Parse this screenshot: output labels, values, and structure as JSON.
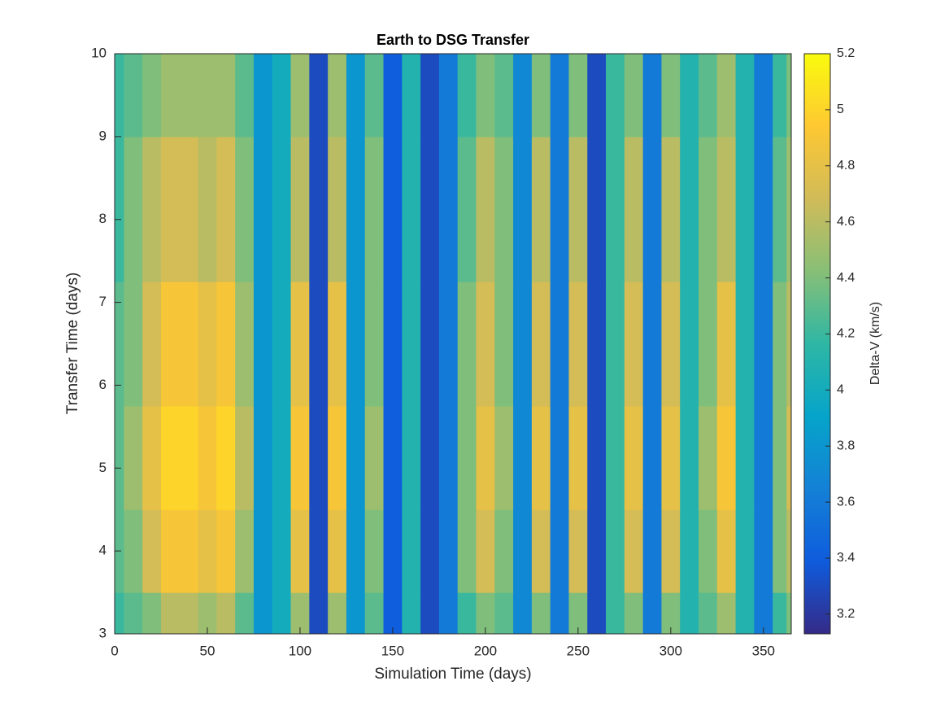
{
  "chart_data": {
    "type": "contourf",
    "title": "Earth to DSG Transfer",
    "x_label": "Simulation Time (days)",
    "y_label": "Transfer Time (days)",
    "colorbar_label": "Delta-V (km/s)",
    "x": [
      0,
      10,
      20,
      30,
      40,
      50,
      60,
      70,
      80,
      90,
      100,
      110,
      120,
      130,
      140,
      150,
      160,
      170,
      180,
      190,
      200,
      210,
      220,
      230,
      240,
      250,
      260,
      270,
      280,
      290,
      300,
      310,
      320,
      330,
      340,
      350,
      360,
      365
    ],
    "y": [
      3,
      4,
      5,
      6.5,
      8,
      10
    ],
    "z": [
      [
        4.2,
        4.3,
        4.4,
        4.6,
        4.6,
        4.5,
        4.6,
        4.3,
        3.8,
        4.0,
        4.5,
        3.3,
        4.5,
        3.8,
        4.3,
        3.4,
        4.1,
        3.3,
        3.6,
        4.2,
        4.4,
        4.3,
        3.7,
        4.4,
        3.6,
        4.4,
        3.3,
        4.2,
        4.4,
        3.6,
        4.4,
        4.1,
        4.3,
        4.5,
        4.1,
        3.6,
        4.2,
        4.4
      ],
      [
        4.3,
        4.4,
        4.7,
        4.9,
        4.9,
        4.8,
        4.9,
        4.5,
        3.8,
        4.0,
        4.8,
        3.3,
        4.8,
        3.8,
        4.4,
        3.4,
        4.1,
        3.3,
        3.6,
        4.4,
        4.7,
        4.4,
        3.7,
        4.7,
        3.6,
        4.7,
        3.3,
        4.2,
        4.7,
        3.6,
        4.7,
        4.1,
        4.4,
        4.8,
        4.1,
        3.6,
        4.4,
        4.6
      ],
      [
        4.3,
        4.5,
        4.8,
        5.0,
        5.0,
        4.9,
        5.0,
        4.6,
        3.8,
        4.0,
        4.9,
        3.3,
        4.9,
        3.8,
        4.5,
        3.4,
        4.1,
        3.3,
        3.6,
        4.4,
        4.8,
        4.5,
        3.7,
        4.8,
        3.6,
        4.8,
        3.3,
        4.2,
        4.8,
        3.6,
        4.8,
        4.1,
        4.5,
        4.9,
        4.1,
        3.6,
        4.4,
        4.7
      ],
      [
        4.3,
        4.4,
        4.7,
        4.9,
        4.9,
        4.8,
        4.9,
        4.5,
        3.8,
        4.0,
        4.8,
        3.3,
        4.8,
        3.8,
        4.4,
        3.4,
        4.1,
        3.3,
        3.6,
        4.4,
        4.7,
        4.4,
        3.7,
        4.7,
        3.6,
        4.7,
        3.3,
        4.2,
        4.7,
        3.6,
        4.7,
        4.1,
        4.4,
        4.8,
        4.1,
        3.6,
        4.4,
        4.6
      ],
      [
        4.2,
        4.4,
        4.6,
        4.7,
        4.7,
        4.6,
        4.7,
        4.4,
        3.8,
        4.0,
        4.6,
        3.3,
        4.6,
        3.8,
        4.4,
        3.4,
        4.1,
        3.3,
        3.6,
        4.3,
        4.6,
        4.4,
        3.7,
        4.6,
        3.6,
        4.6,
        3.3,
        4.2,
        4.6,
        3.6,
        4.6,
        4.1,
        4.4,
        4.6,
        4.1,
        3.6,
        4.3,
        4.5
      ],
      [
        4.2,
        4.3,
        4.4,
        4.5,
        4.5,
        4.5,
        4.5,
        4.3,
        3.8,
        4.0,
        4.5,
        3.3,
        4.5,
        3.8,
        4.3,
        3.4,
        4.1,
        3.3,
        3.6,
        4.2,
        4.4,
        4.3,
        3.7,
        4.4,
        3.6,
        4.4,
        3.3,
        4.2,
        4.4,
        3.6,
        4.4,
        4.1,
        4.3,
        4.5,
        4.1,
        3.6,
        4.2,
        4.4
      ]
    ],
    "xlim": [
      0,
      365
    ],
    "ylim": [
      3,
      10
    ],
    "xticks": [
      0,
      50,
      100,
      150,
      200,
      250,
      300,
      350
    ],
    "yticks": [
      3,
      4,
      5,
      6,
      7,
      8,
      9,
      10
    ],
    "clim": [
      3.13,
      5.2
    ],
    "cticks": [
      3.2,
      3.4,
      3.6,
      3.8,
      4,
      4.2,
      4.4,
      4.6,
      4.8,
      5,
      5.2
    ],
    "colormap": [
      "#352a87",
      "#0f5cdd",
      "#1481d6",
      "#06a4ca",
      "#2eb7a4",
      "#87bf77",
      "#d1bb59",
      "#fec832",
      "#f9fb0e"
    ]
  }
}
